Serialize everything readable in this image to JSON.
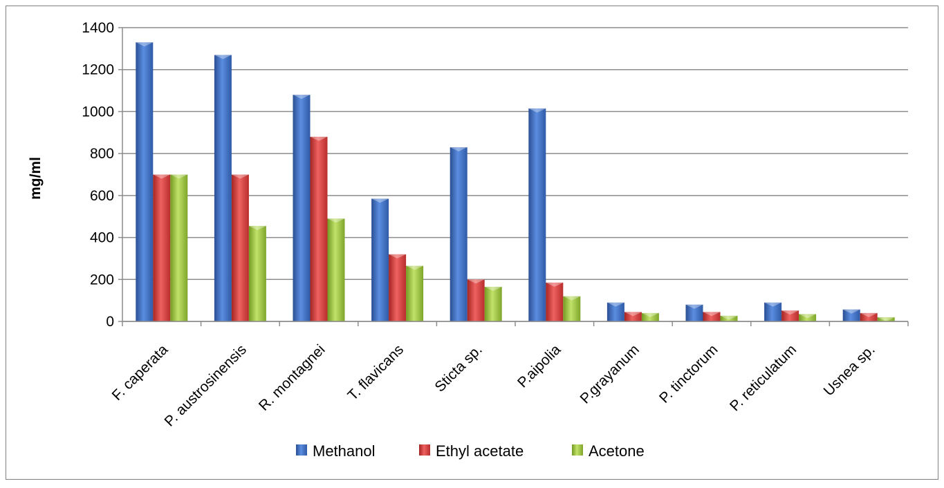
{
  "chart_data": {
    "type": "bar",
    "title": "",
    "xlabel": "",
    "ylabel": "mg/ml",
    "ylim": [
      0,
      1400
    ],
    "yticks": [
      0,
      200,
      400,
      600,
      800,
      1000,
      1200,
      1400
    ],
    "grid": true,
    "legend_position": "bottom",
    "categories": [
      "F. caperata",
      "P. austrosinensis",
      "R. montagnei",
      "T. flavicans",
      "Sticta sp.",
      "P.aipolia",
      "P.grayanum",
      "P. tinctorum",
      "P. reticulatum",
      "Usnea sp."
    ],
    "series": [
      {
        "name": "Methanol",
        "color": "#3f6fc4",
        "values": [
          1330,
          1270,
          1080,
          585,
          830,
          1015,
          90,
          80,
          90,
          57
        ]
      },
      {
        "name": "Ethyl acetate",
        "color": "#d43c3a",
        "values": [
          700,
          700,
          880,
          320,
          200,
          185,
          45,
          45,
          52,
          40
        ]
      },
      {
        "name": "Acetone",
        "color": "#9dc83f",
        "values": [
          700,
          455,
          490,
          265,
          165,
          120,
          40,
          27,
          35,
          20
        ]
      }
    ]
  }
}
